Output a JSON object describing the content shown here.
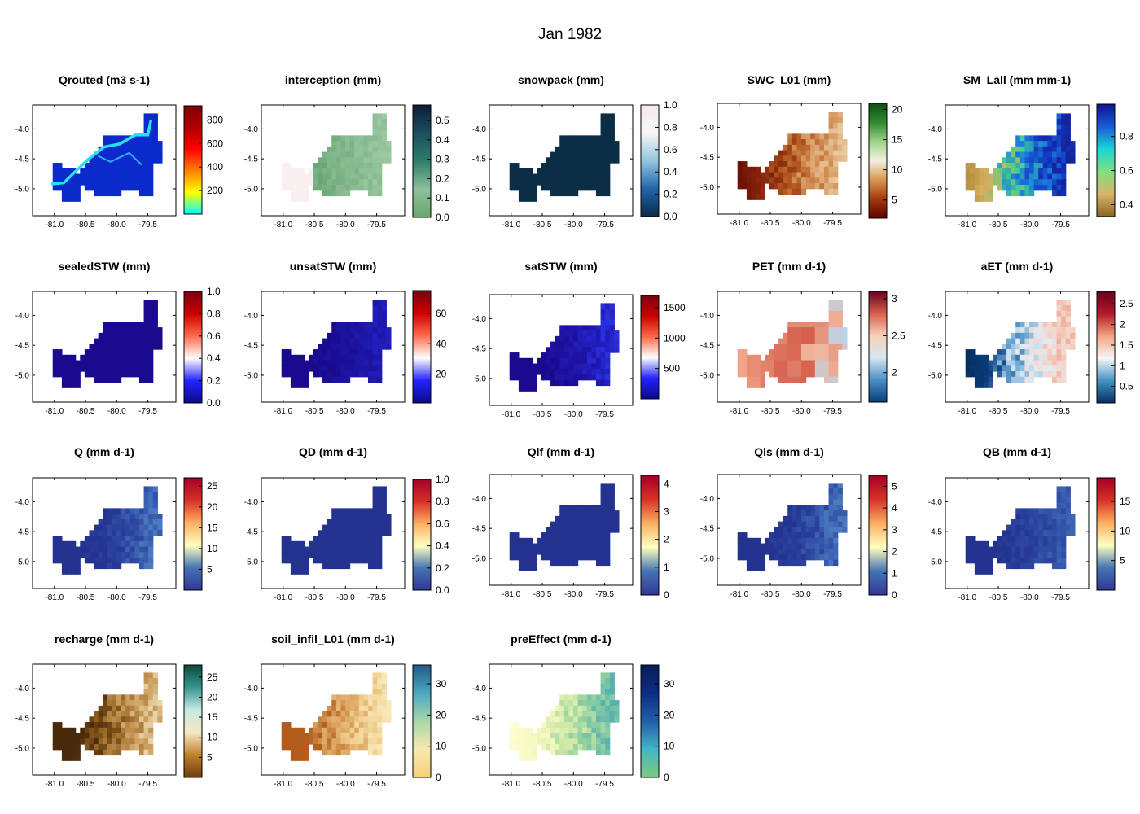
{
  "figure_title": "Jan 1982",
  "chart_data": [
    {
      "type": "heatmap",
      "title": "Qrouted (m3 s-1)",
      "style": "river",
      "cmap": [
        "#00ffff",
        "#ffff00",
        "#ff8000",
        "#ff0000",
        "#b00000",
        "#800000"
      ],
      "clim": [
        0,
        920
      ],
      "cbar_ticks": [
        200,
        400,
        600,
        800
      ],
      "fill_fraction": 0.1,
      "nodata_color": "#0a2acc",
      "x_ticks": [
        "-81.0",
        "-80.5",
        "-80.0",
        "-79.5"
      ],
      "y_ticks": [
        "-4.0",
        "-4.5",
        "-5.0"
      ]
    },
    {
      "type": "heatmap",
      "title": "interception (mm)",
      "cmap": [
        "#6aa86c",
        "#8cc19a",
        "#2e7d6b",
        "#1c4f5e",
        "#0d1b3a"
      ],
      "clim": [
        0,
        0.58
      ],
      "cbar_ticks": [
        0.0,
        0.1,
        0.2,
        0.3,
        0.4,
        0.5
      ],
      "region_left_value": 0.0,
      "region_left_color": "#fbf0f0",
      "gradient": [
        "#5e9a68",
        "#7db487",
        "#9cc8a2"
      ],
      "x_ticks": [
        "-81.0",
        "-80.5",
        "-80.0",
        "-79.5"
      ],
      "y_ticks": [
        "-4.0",
        "-4.5",
        "-5.0"
      ]
    },
    {
      "type": "heatmap",
      "title": "snowpack (mm)",
      "cmap": [
        "#0b2a4a",
        "#2166ac",
        "#92c5de",
        "#f7f7f7",
        "#f6e8ef"
      ],
      "clim": [
        0,
        1.0
      ],
      "cbar_ticks": [
        0.0,
        0.2,
        0.4,
        0.6,
        0.8,
        1.0
      ],
      "uniform_color": "#0b2e45",
      "x_ticks": [
        "-81.0",
        "-80.5",
        "-80.0",
        "-79.5"
      ],
      "y_ticks": [
        "-4.0",
        "-4.5",
        "-5.0"
      ]
    },
    {
      "type": "heatmap",
      "title": "SWC_L01 (mm)",
      "cmap": [
        "#5e0000",
        "#a33a10",
        "#d99550",
        "#f5f0e0",
        "#9fd28a",
        "#2e8b2e",
        "#0b4f14"
      ],
      "clim": [
        2,
        21
      ],
      "cbar_ticks": [
        5,
        10,
        15,
        20
      ],
      "gradient": [
        "#6b0c05",
        "#8a2a0e",
        "#b65c22",
        "#d9a068",
        "#e8c9a0"
      ],
      "x_ticks": [
        "-81.0",
        "-80.5",
        "-80.0",
        "-79.5"
      ],
      "y_ticks": [
        "-4.0",
        "-4.5",
        "-5.0"
      ]
    },
    {
      "type": "heatmap",
      "title": "SM_Lall (mm mm-1)",
      "cmap": [
        "#8a6520",
        "#d9b46a",
        "#7fe07f",
        "#1ad6d6",
        "#1a5bd6",
        "#10148f"
      ],
      "clim": [
        0.33,
        0.99
      ],
      "cbar_ticks": [
        0.4,
        0.6,
        0.8
      ],
      "gradient": [
        "#b08a3c",
        "#d8b060",
        "#3fd08a",
        "#1a7ae0",
        "#1130b8",
        "#15229a"
      ],
      "x_ticks": [
        "-81.0",
        "-80.5",
        "-80.0",
        "-79.5"
      ],
      "y_ticks": [
        "-4.0",
        "-4.5",
        "-5.0"
      ]
    },
    {
      "type": "heatmap",
      "title": "sealedSTW (mm)",
      "cmap": [
        "#0a0a8a",
        "#2222ff",
        "#ffffff",
        "#ff6a4a",
        "#cc0000",
        "#7a0010"
      ],
      "clim": [
        0,
        1.0
      ],
      "cbar_ticks": [
        0.0,
        0.2,
        0.4,
        0.6,
        0.8,
        1.0
      ],
      "uniform_color": "#1a0a8f",
      "x_ticks": [
        "-81.0",
        "-80.5",
        "-80.0",
        "-79.5"
      ],
      "y_ticks": [
        "-4.0",
        "-4.5",
        "-5.0"
      ]
    },
    {
      "type": "heatmap",
      "title": "unsatSTW (mm)",
      "cmap": [
        "#0a0a8a",
        "#2222ff",
        "#ffffff",
        "#ff6a4a",
        "#cc0000",
        "#7a0010"
      ],
      "clim": [
        1,
        75
      ],
      "cbar_ticks": [
        20,
        40,
        60
      ],
      "gradient": [
        "#1a0a8f",
        "#1a0a8f",
        "#1c14a0",
        "#2020c0"
      ],
      "x_ticks": [
        "-81.0",
        "-80.5",
        "-80.0",
        "-79.5"
      ],
      "y_ticks": [
        "-4.0",
        "-4.5",
        "-5.0"
      ]
    },
    {
      "type": "heatmap",
      "title": "satSTW (mm)",
      "cmap": [
        "#0a0a8a",
        "#2222ff",
        "#ffffff",
        "#ff6a4a",
        "#cc0000",
        "#7a0010"
      ],
      "clim": [
        0,
        1700
      ],
      "cbar_ticks": [
        500,
        1000,
        1500
      ],
      "gradient": [
        "#1a0a8f",
        "#1a0a8f",
        "#1f18b0",
        "#2a30e0"
      ],
      "x_ticks": [
        "-81.0",
        "-80.5",
        "-80.0",
        "-79.5"
      ],
      "y_ticks": [
        "-4.0",
        "-4.5",
        "-5.0"
      ]
    },
    {
      "type": "heatmap",
      "title": "PET (mm d-1)",
      "cmap": [
        "#073f7a",
        "#4a90c8",
        "#d6e6f2",
        "#f8d0bc",
        "#d6604d",
        "#67001f"
      ],
      "clim": [
        1.6,
        3.1
      ],
      "cbar_ticks": [
        2.0,
        2.5,
        3.0
      ],
      "gradient": [
        "#f2a78c",
        "#e07a62",
        "#d6604d",
        "#f0b8a0",
        "#b8d4ea"
      ],
      "coarse": true,
      "x_ticks": [
        "-81.0",
        "-80.5",
        "-80.0",
        "-79.5"
      ],
      "y_ticks": [
        "-4.0",
        "-4.5",
        "-5.0"
      ]
    },
    {
      "type": "heatmap",
      "title": "aET (mm d-1)",
      "cmap": [
        "#053061",
        "#4393c3",
        "#f7f7f7",
        "#f4a582",
        "#b2182b",
        "#67001f"
      ],
      "clim": [
        0.1,
        2.8
      ],
      "cbar_ticks": [
        0.5,
        1.0,
        1.5,
        2.0,
        2.5
      ],
      "gradient": [
        "#062e5e",
        "#0a3b78",
        "#6aa6d3",
        "#e2ecf4",
        "#f4d4c8",
        "#f1b0a0"
      ],
      "x_ticks": [
        "-81.0",
        "-80.5",
        "-80.0",
        "-79.5"
      ],
      "y_ticks": [
        "-4.0",
        "-4.5",
        "-5.0"
      ]
    },
    {
      "type": "heatmap",
      "title": "Q (mm d-1)",
      "cmap": [
        "#313695",
        "#4575b4",
        "#ffffbf",
        "#fdae61",
        "#d73027",
        "#a50026"
      ],
      "clim": [
        0,
        27
      ],
      "cbar_ticks": [
        5,
        10,
        15,
        20,
        25
      ],
      "gradient": [
        "#23338f",
        "#23338f",
        "#2c46a0",
        "#4a7ac0"
      ],
      "x_ticks": [
        "-81.0",
        "-80.5",
        "-80.0",
        "-79.5"
      ],
      "y_ticks": [
        "-4.0",
        "-4.5",
        "-5.0"
      ]
    },
    {
      "type": "heatmap",
      "title": "QD (mm d-1)",
      "cmap": [
        "#313695",
        "#4575b4",
        "#ffffbf",
        "#fdae61",
        "#d73027",
        "#a50026"
      ],
      "clim": [
        0,
        1.0
      ],
      "cbar_ticks": [
        0.0,
        0.2,
        0.4,
        0.6,
        0.8,
        1.0
      ],
      "uniform_color": "#24338f",
      "x_ticks": [
        "-81.0",
        "-80.5",
        "-80.0",
        "-79.5"
      ],
      "y_ticks": [
        "-4.0",
        "-4.5",
        "-5.0"
      ]
    },
    {
      "type": "heatmap",
      "title": "Qlf (mm d-1)",
      "cmap": [
        "#313695",
        "#4575b4",
        "#ffffbf",
        "#fdae61",
        "#d73027",
        "#a50026"
      ],
      "clim": [
        0,
        4.3
      ],
      "cbar_ticks": [
        0,
        1,
        2,
        3,
        4
      ],
      "uniform_color": "#24338f",
      "x_ticks": [
        "-81.0",
        "-80.5",
        "-80.0",
        "-79.5"
      ],
      "y_ticks": [
        "-4.0",
        "-4.5",
        "-5.0"
      ]
    },
    {
      "type": "heatmap",
      "title": "Qls (mm d-1)",
      "cmap": [
        "#313695",
        "#4575b4",
        "#ffffbf",
        "#fdae61",
        "#d73027",
        "#a50026"
      ],
      "clim": [
        0,
        5.5
      ],
      "cbar_ticks": [
        0,
        1,
        2,
        3,
        4,
        5
      ],
      "gradient": [
        "#23338f",
        "#23338f",
        "#2c46a0",
        "#4a7ac0"
      ],
      "x_ticks": [
        "-81.0",
        "-80.5",
        "-80.0",
        "-79.5"
      ],
      "y_ticks": [
        "-4.0",
        "-4.5",
        "-5.0"
      ]
    },
    {
      "type": "heatmap",
      "title": "QB (mm d-1)",
      "cmap": [
        "#313695",
        "#4575b4",
        "#ffffbf",
        "#fdae61",
        "#d73027",
        "#a50026"
      ],
      "clim": [
        0,
        19
      ],
      "cbar_ticks": [
        5,
        10,
        15
      ],
      "gradient": [
        "#23338f",
        "#23338f",
        "#2c46a0",
        "#3e66b4"
      ],
      "x_ticks": [
        "-81.0",
        "-80.5",
        "-80.0",
        "-79.5"
      ],
      "y_ticks": [
        "-4.0",
        "-4.5",
        "-5.0"
      ]
    },
    {
      "type": "heatmap",
      "title": "recharge (mm d-1)",
      "cmap": [
        "#6b3d10",
        "#bf812d",
        "#f6e8c3",
        "#c7eae5",
        "#35978f",
        "#0c4a3c"
      ],
      "clim": [
        0,
        28
      ],
      "cbar_ticks": [
        5,
        10,
        15,
        20,
        25
      ],
      "gradient": [
        "#4a2a0c",
        "#4a2a0c",
        "#8a5a1c",
        "#c89a58",
        "#e8d2a8"
      ],
      "x_ticks": [
        "-81.0",
        "-80.5",
        "-80.0",
        "-79.5"
      ],
      "y_ticks": [
        "-4.0",
        "-4.5",
        "-5.0"
      ]
    },
    {
      "type": "heatmap",
      "title": "soil_infil_L01 (mm d-1)",
      "cmap": [
        "#f5d07a",
        "#f8e8b0",
        "#a8d8a8",
        "#4aa8c0",
        "#215a8a"
      ],
      "clim": [
        0,
        36
      ],
      "cbar_ticks": [
        0,
        10,
        20,
        30
      ],
      "gradient": [
        "#b35c1e",
        "#b35c1e",
        "#d9a05a",
        "#f0d090",
        "#f8e8b8"
      ],
      "x_ticks": [
        "-81.0",
        "-80.5",
        "-80.0",
        "-79.5"
      ],
      "y_ticks": [
        "-4.0",
        "-4.5",
        "-5.0"
      ]
    },
    {
      "type": "heatmap",
      "title": "preEffect (mm d-1)",
      "cmap": [
        "#7fc97f",
        "#41b6c4",
        "#225ea8",
        "#0c2c84",
        "#081d58"
      ],
      "clim": [
        0,
        36
      ],
      "cbar_ticks": [
        0,
        10,
        20,
        30
      ],
      "gradient": [
        "#fffdd0",
        "#f5f8c0",
        "#cfe8a8",
        "#8ccfa0",
        "#5ab0b0"
      ],
      "x_ticks": [
        "-81.0",
        "-80.5",
        "-80.0",
        "-79.5"
      ],
      "y_ticks": [
        "-4.0",
        "-4.5",
        "-5.0"
      ]
    }
  ]
}
